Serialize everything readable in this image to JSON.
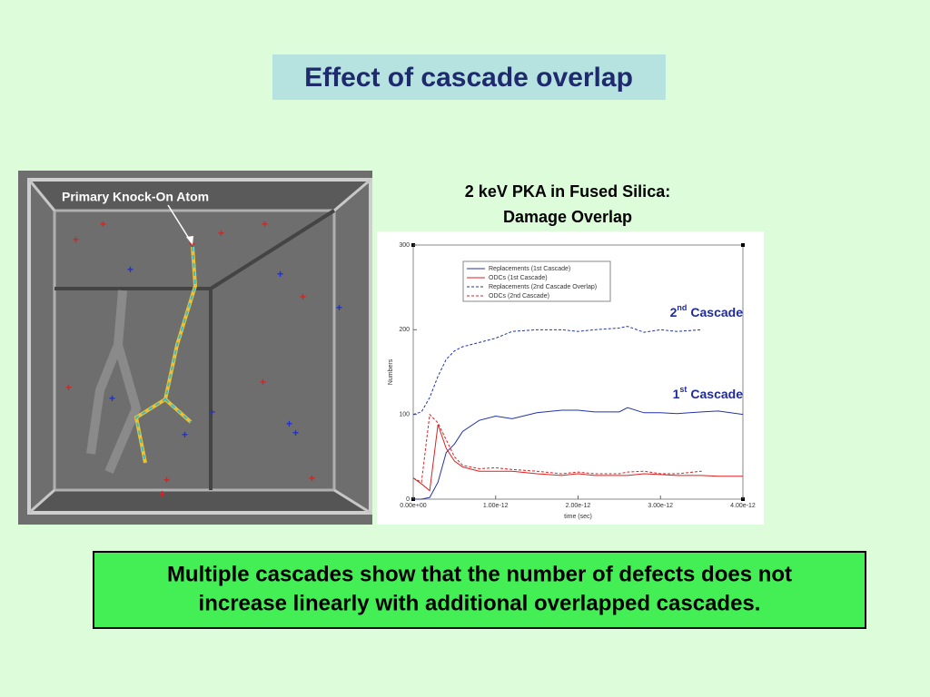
{
  "slide_title": "Effect of cascade overlap",
  "image_label": "Primary Knock-On Atom",
  "caption": [
    "Multiple cascades show that the number of defects does not",
    "increase linearly with additional overlapped cascades."
  ],
  "chart_data": {
    "type": "line",
    "title": [
      "2 keV PKA in Fused Silica:",
      "Damage Overlap"
    ],
    "x_label": "time (sec)",
    "y_label": "Numbers",
    "x": [
      0,
      1e-13,
      2e-13,
      3e-13,
      4e-13,
      5e-13,
      6e-13,
      8e-13,
      1e-12,
      1.2e-12,
      1.5e-12,
      1.8e-12,
      2e-12,
      2.2e-12,
      2.5e-12,
      2.6e-12,
      2.8e-12,
      3e-12,
      3.2e-12,
      3.5e-12,
      3.7e-12,
      4e-12
    ],
    "series": [
      {
        "name": "Replacements (1st Cascade)",
        "color": "#2233aa",
        "dash": false,
        "values": [
          0,
          0,
          2,
          20,
          55,
          65,
          80,
          93,
          98,
          95,
          102,
          105,
          105,
          103,
          103,
          108,
          102,
          102,
          101,
          103,
          104,
          100
        ]
      },
      {
        "name": "ODCs (1st Cascade)",
        "color": "#dd2222",
        "dash": false,
        "values": [
          25,
          18,
          10,
          88,
          60,
          45,
          38,
          33,
          33,
          33,
          30,
          28,
          30,
          28,
          28,
          28,
          30,
          29,
          28,
          28,
          27,
          27
        ]
      },
      {
        "name": "Replacements (2nd Cascade Overlap)",
        "color": "#2233aa",
        "dash": true,
        "values": [
          100,
          103,
          120,
          145,
          165,
          175,
          180,
          185,
          190,
          198,
          200,
          200,
          198,
          200,
          202,
          204,
          197,
          200,
          198,
          200,
          null,
          null
        ]
      },
      {
        "name": "ODCs (2nd Cascade)",
        "color": "#dd2222",
        "dash": true,
        "values": [
          25,
          20,
          100,
          90,
          70,
          50,
          40,
          36,
          37,
          35,
          33,
          30,
          32,
          30,
          30,
          32,
          33,
          30,
          30,
          33,
          null,
          null
        ]
      }
    ],
    "xlim": [
      0,
      4e-12
    ],
    "xticks": [
      {
        "value": 0,
        "label": "0.00e+00"
      },
      {
        "value": 1e-12,
        "label": "1.00e-12"
      },
      {
        "value": 2e-12,
        "label": "2.00e-12"
      },
      {
        "value": 3e-12,
        "label": "3.00e-12"
      },
      {
        "value": 4e-12,
        "label": "4.00e-12"
      }
    ],
    "ylim": [
      0,
      300
    ],
    "yticks": [
      0,
      100,
      200,
      300
    ],
    "annotations": [
      {
        "number": "2",
        "suffix": "nd",
        "label": "Cascade"
      },
      {
        "number": "1",
        "suffix": "st",
        "label": "Cascade"
      }
    ]
  }
}
